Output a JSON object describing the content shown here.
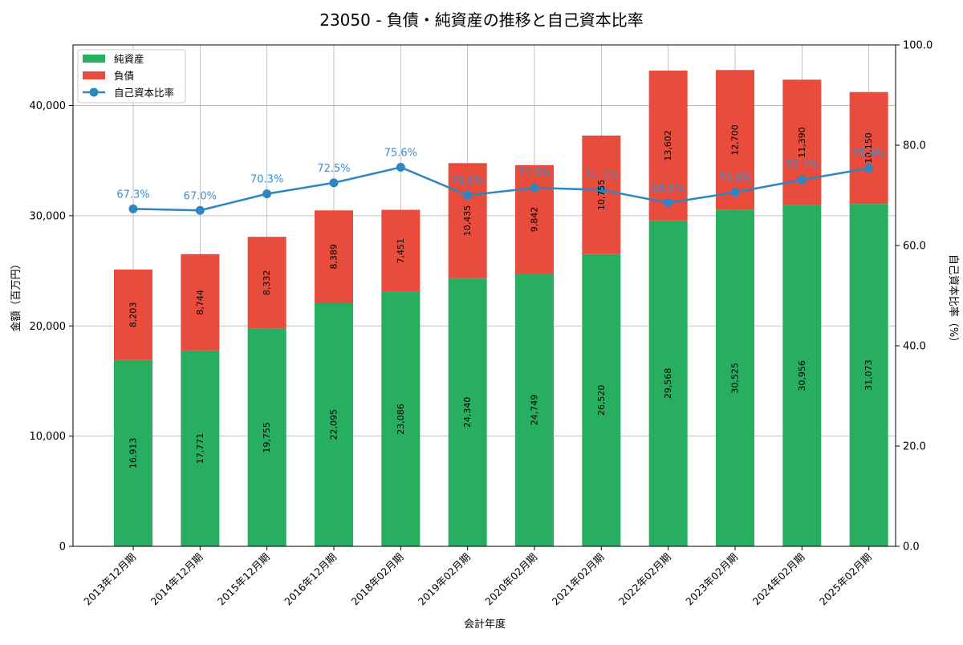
{
  "chart_data": {
    "type": "bar",
    "stacked": true,
    "title": "23050 - 負債・純資産の推移と自己資本比率",
    "xlabel": "会計年度",
    "ylabel": "金額（百万円）",
    "y2label": "自己資本比率（%）",
    "ylim": [
      0,
      45500
    ],
    "y2lim": [
      0,
      100
    ],
    "yticks": [
      "0",
      "10,000",
      "20,000",
      "30,000",
      "40,000"
    ],
    "y2ticks": [
      "0.0",
      "20.0",
      "40.0",
      "60.0",
      "80.0",
      "100.0"
    ],
    "grid": true,
    "legend_position": "top-left",
    "categories": [
      "2013年12月期",
      "2014年12月期",
      "2015年12月期",
      "2016年12月期",
      "2018年02月期",
      "2019年02月期",
      "2020年02月期",
      "2021年02月期",
      "2022年02月期",
      "2023年02月期",
      "2024年02月期",
      "2025年02月期"
    ],
    "series": [
      {
        "name": "純資産",
        "kind": "bar",
        "color": "#27ae60",
        "values": [
          16913,
          17771,
          19755,
          22095,
          23086,
          24340,
          24749,
          26520,
          29568,
          30525,
          30956,
          31073
        ],
        "labels": [
          "16,913",
          "17,771",
          "19,755",
          "22,095",
          "23,086",
          "24,340",
          "24,749",
          "26,520",
          "29,568",
          "30,525",
          "30,956",
          "31,073"
        ]
      },
      {
        "name": "負債",
        "kind": "bar",
        "color": "#e74c3c",
        "values": [
          8203,
          8744,
          8332,
          8389,
          7451,
          10435,
          9842,
          10755,
          13602,
          12700,
          11390,
          10150
        ],
        "labels": [
          "8,203",
          "8,744",
          "8,332",
          "8,389",
          "7,451",
          "10,435",
          "9,842",
          "10,755",
          "13,602",
          "12,700",
          "11,390",
          "10,150"
        ]
      },
      {
        "name": "自己資本比率",
        "kind": "line",
        "axis": "right",
        "color": "#2e86c1",
        "values": [
          67.3,
          67.0,
          70.3,
          72.5,
          75.6,
          70.0,
          71.5,
          71.1,
          68.5,
          70.6,
          73.1,
          75.4
        ],
        "labels": [
          "67.3%",
          "67.0%",
          "70.3%",
          "72.5%",
          "75.6%",
          "70.0%",
          "71.5%",
          "71.1%",
          "68.5%",
          "70.6%",
          "73.1%",
          "75.4%"
        ]
      }
    ]
  }
}
